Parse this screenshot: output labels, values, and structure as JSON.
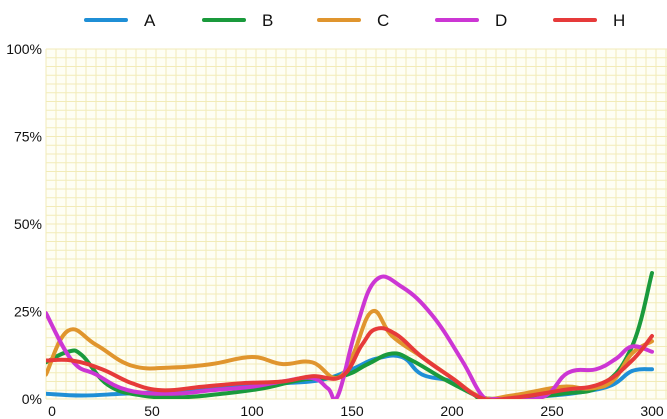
{
  "chart_data": {
    "type": "line",
    "title": "",
    "xlabel": "",
    "ylabel": "",
    "xlim": [
      -3,
      300
    ],
    "ylim": [
      0,
      100
    ],
    "x_ticks": [
      0,
      50,
      100,
      150,
      200,
      250,
      300
    ],
    "y_ticks": [
      0,
      25,
      50,
      75,
      100
    ],
    "y_tick_labels": [
      "0%",
      "25%",
      "50%",
      "75%",
      "100%"
    ],
    "grid": true,
    "legend_position": "top",
    "background_color": "#fefef4",
    "grid_color": "#f2ebb8",
    "series": [
      {
        "name": "A",
        "color": "#1f8fd6",
        "x": [
          -3,
          15,
          35,
          55,
          75,
          95,
          115,
          135,
          150,
          162,
          175,
          185,
          200,
          215,
          230,
          250,
          265,
          280,
          290,
          300
        ],
        "y": [
          1.5,
          1.0,
          1.5,
          2.0,
          3.0,
          4.0,
          4.5,
          5.5,
          8.5,
          11.5,
          12.0,
          7.0,
          5.0,
          0.5,
          0.3,
          1.0,
          2.0,
          4.0,
          8.0,
          8.5
        ]
      },
      {
        "name": "B",
        "color": "#1a9a3c",
        "x": [
          -3,
          8,
          15,
          28,
          45,
          65,
          85,
          105,
          125,
          145,
          158,
          170,
          180,
          195,
          210,
          215,
          230,
          255,
          275,
          290,
          300
        ],
        "y": [
          10.5,
          13.5,
          12.5,
          4.0,
          1.0,
          0.5,
          1.5,
          3.0,
          5.5,
          6.5,
          10.0,
          13.0,
          11.0,
          6.0,
          1.5,
          0.2,
          0.2,
          1.5,
          4.0,
          15.0,
          36.0
        ]
      },
      {
        "name": "C",
        "color": "#e0952e",
        "x": [
          -3,
          8,
          22,
          40,
          60,
          80,
          100,
          115,
          130,
          142,
          150,
          160,
          170,
          185,
          200,
          215,
          230,
          255,
          268,
          280,
          290,
          300
        ],
        "y": [
          7.0,
          19.5,
          15.5,
          9.5,
          9.0,
          10.0,
          12.0,
          10.0,
          10.5,
          6.0,
          12.0,
          25.0,
          18.0,
          12.0,
          6.0,
          0.5,
          1.0,
          3.5,
          3.0,
          5.0,
          13.0,
          16.5
        ]
      },
      {
        "name": "D",
        "color": "#cc36d4",
        "x": [
          -3,
          10,
          22,
          38,
          60,
          80,
          100,
          115,
          130,
          138,
          143,
          152,
          162,
          175,
          190,
          205,
          215,
          222,
          245,
          258,
          272,
          282,
          290,
          300
        ],
        "y": [
          24.5,
          11.0,
          7.0,
          2.5,
          1.5,
          2.5,
          3.5,
          5.0,
          6.0,
          3.0,
          1.0,
          20.0,
          34.0,
          32.0,
          24.0,
          11.0,
          1.0,
          0.0,
          0.5,
          7.5,
          8.5,
          11.5,
          15.0,
          13.5
        ]
      },
      {
        "name": "H",
        "color": "#e63a3a",
        "x": [
          -3,
          10,
          25,
          40,
          55,
          75,
          95,
          115,
          130,
          145,
          155,
          162,
          172,
          185,
          200,
          215,
          230,
          255,
          275,
          290,
          300
        ],
        "y": [
          11.0,
          11.0,
          8.5,
          4.5,
          2.5,
          3.5,
          4.5,
          5.0,
          6.5,
          6.5,
          15.5,
          20.0,
          18.5,
          12.0,
          6.0,
          0.2,
          0.3,
          2.5,
          4.5,
          11.0,
          18.0
        ]
      }
    ]
  }
}
